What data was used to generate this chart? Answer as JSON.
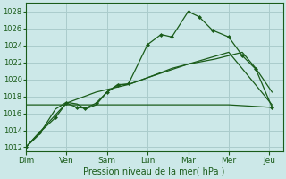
{
  "bg_color": "#cce8e8",
  "grid_color": "#aacccc",
  "line_color": "#1a5c1a",
  "x_labels": [
    "Dim",
    "Ven",
    "Sam",
    "Lun",
    "Mar",
    "Mer",
    "Jeu"
  ],
  "x_ticks": [
    0,
    1.5,
    3.0,
    4.5,
    6.0,
    7.5,
    9.0
  ],
  "xlabel": "Pression niveau de la mer( hPa )",
  "ylim": [
    1011.5,
    1029.0
  ],
  "yticks": [
    1012,
    1014,
    1016,
    1018,
    1020,
    1022,
    1024,
    1026,
    1028
  ],
  "xlim": [
    0,
    9.5
  ],
  "line1_x": [
    0,
    0.5,
    1.1,
    1.5,
    1.9,
    2.2,
    2.6,
    3.0,
    3.4,
    3.8,
    4.5,
    5.0,
    5.4,
    6.0,
    6.4,
    6.9,
    7.5,
    8.0,
    8.5,
    9.1
  ],
  "line1_y": [
    1012,
    1013.7,
    1015.5,
    1017.2,
    1016.7,
    1016.6,
    1017.2,
    1018.5,
    1019.3,
    1019.5,
    1024.1,
    1025.3,
    1025.0,
    1028.0,
    1027.4,
    1025.8,
    1025.0,
    1022.8,
    1021.2,
    1016.7
  ],
  "line2_x": [
    0,
    0.5,
    1.1,
    1.5,
    1.9,
    2.2,
    2.6,
    3.0,
    3.4,
    3.8,
    4.5,
    5.4,
    6.0,
    7.0,
    7.5,
    8.0,
    8.5,
    9.1
  ],
  "line2_y": [
    1012,
    1013.5,
    1016.5,
    1017.3,
    1017.1,
    1016.5,
    1017.0,
    1018.5,
    1019.4,
    1019.4,
    1020.2,
    1021.3,
    1021.8,
    1022.4,
    1022.8,
    1023.2,
    1021.3,
    1018.5
  ],
  "line3_x": [
    0,
    1.5,
    2.6,
    3.8,
    4.5,
    6.0,
    7.5,
    9.1
  ],
  "line3_y": [
    1012,
    1017.2,
    1018.5,
    1019.4,
    1020.2,
    1021.8,
    1023.2,
    1017.0
  ],
  "line4_x": [
    0,
    4.45,
    7.5,
    9.1
  ],
  "line4_y": [
    1017.0,
    1017.0,
    1017.0,
    1016.7
  ],
  "figsize": [
    3.2,
    2.0
  ],
  "dpi": 100
}
